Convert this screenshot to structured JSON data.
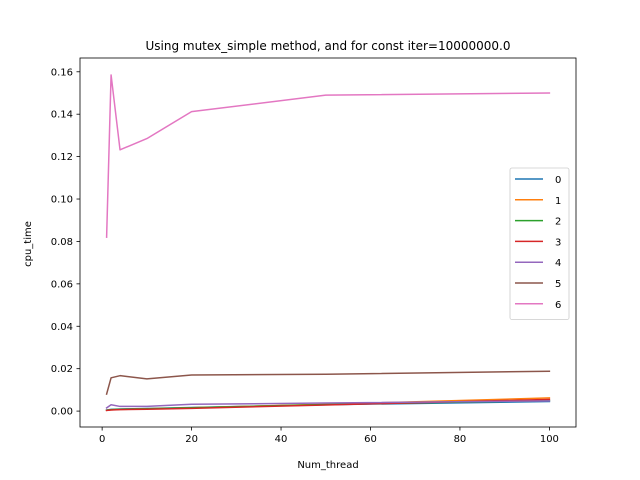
{
  "chart_data": {
    "type": "line",
    "title": "Using mutex_simple method, and for const iter=10000000.0",
    "xlabel": "Num_thread",
    "ylabel": "cpu_time",
    "xlim": [
      -4.95,
      105.95
    ],
    "ylim": [
      -0.0075,
      0.1665
    ],
    "x_ticks": [
      0,
      20,
      40,
      60,
      80,
      100
    ],
    "x_tick_labels": [
      "0",
      "20",
      "40",
      "60",
      "80",
      "100"
    ],
    "y_ticks": [
      0.0,
      0.02,
      0.04,
      0.06,
      0.08,
      0.1,
      0.12,
      0.14,
      0.16
    ],
    "y_tick_labels": [
      "0.00",
      "0.02",
      "0.04",
      "0.06",
      "0.08",
      "0.10",
      "0.12",
      "0.14",
      "0.16"
    ],
    "grid": false,
    "legend_position": "center-right",
    "x": [
      1,
      2,
      4,
      10,
      20,
      50,
      100
    ],
    "series": [
      {
        "name": "0",
        "color": "#1f77b4",
        "values": [
          0.0005,
          0.0008,
          0.001,
          0.0012,
          0.0017,
          0.003,
          0.0045
        ]
      },
      {
        "name": "1",
        "color": "#ff7f0e",
        "values": [
          0.0004,
          0.0006,
          0.0008,
          0.0011,
          0.0016,
          0.0032,
          0.0062
        ]
      },
      {
        "name": "2",
        "color": "#2ca02c",
        "values": [
          0.0004,
          0.0007,
          0.0009,
          0.0011,
          0.0016,
          0.0031,
          0.005
        ]
      },
      {
        "name": "3",
        "color": "#d62728",
        "values": [
          0.0003,
          0.0005,
          0.0007,
          0.0009,
          0.0013,
          0.0029,
          0.0055
        ]
      },
      {
        "name": "4",
        "color": "#9467bd",
        "values": [
          0.0015,
          0.003,
          0.0022,
          0.0022,
          0.0032,
          0.0038,
          0.0048
        ]
      },
      {
        "name": "5",
        "color": "#8c564b",
        "values": [
          0.008,
          0.0157,
          0.0167,
          0.0152,
          0.017,
          0.0174,
          0.0188
        ]
      },
      {
        "name": "6",
        "color": "#e377c2",
        "values": [
          0.082,
          0.1585,
          0.1232,
          0.1285,
          0.1412,
          0.149,
          0.15
        ]
      }
    ]
  }
}
